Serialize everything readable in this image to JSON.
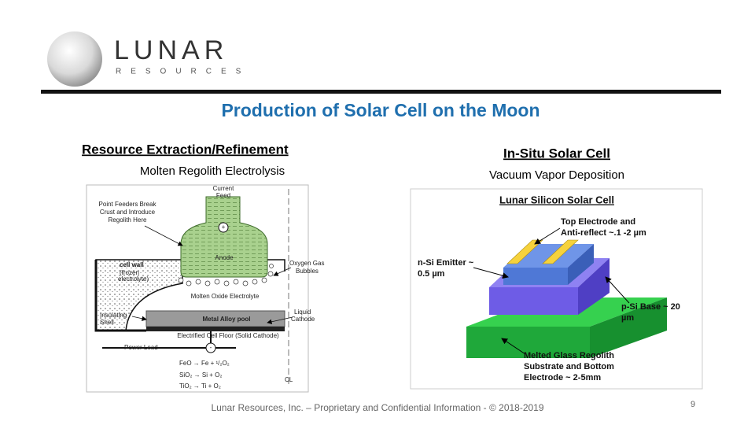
{
  "logo": {
    "name": "LUNAR",
    "tagline": "RESOURCES"
  },
  "title": "Production of Solar Cell on the Moon",
  "left": {
    "heading": "Resource Extraction/Refinement",
    "subheading": "Molten Regolith Electrolysis",
    "diagram": {
      "current_feed": [
        "Current",
        "Feed"
      ],
      "point_feeders": [
        "Point Feeders Break",
        "Crust and Introduce",
        "Regolith Here"
      ],
      "anode_plus": "+",
      "anode": "Anode",
      "cell_wall": "cell wall",
      "frozen": [
        "(frozen",
        "electrolyte)"
      ],
      "oxygen": [
        "Oxygen Gas",
        "Bubbles"
      ],
      "electrolyte": "Molten Oxide Electrolyte",
      "shell": [
        "Insulating",
        "Shell"
      ],
      "pool": "Metal Alloy pool",
      "cathode": [
        "Liquid",
        "Cathode"
      ],
      "floor": "Electrified Cell Floor (Solid Cathode)",
      "power_lead": "Power Lead",
      "minus": "-",
      "reactions": [
        "FeO → Fe + ¹/₂O₂",
        "SiO₂ → Si + O₂",
        "TiO₂ → Ti + O₂"
      ],
      "centerline": "CL"
    }
  },
  "right": {
    "heading": "In-Situ Solar Cell",
    "subheading": "Vacuum Vapor Deposition",
    "diagram": {
      "title": "Lunar Silicon Solar Cell",
      "top_electrode": [
        "Top Electrode and",
        "Anti-reflect ~.1 -2 µm"
      ],
      "emitter": [
        "n-Si Emitter ~",
        "0.5 µm"
      ],
      "base": [
        "p-Si Base ~ 20",
        "µm"
      ],
      "substrate": [
        "Melted Glass Regolith",
        "Substrate and Bottom",
        "Electrode ~ 2-5mm"
      ]
    }
  },
  "footer": "Lunar Resources, Inc. – Proprietary and Confidential Information - © 2018-2019",
  "page_number": "9"
}
